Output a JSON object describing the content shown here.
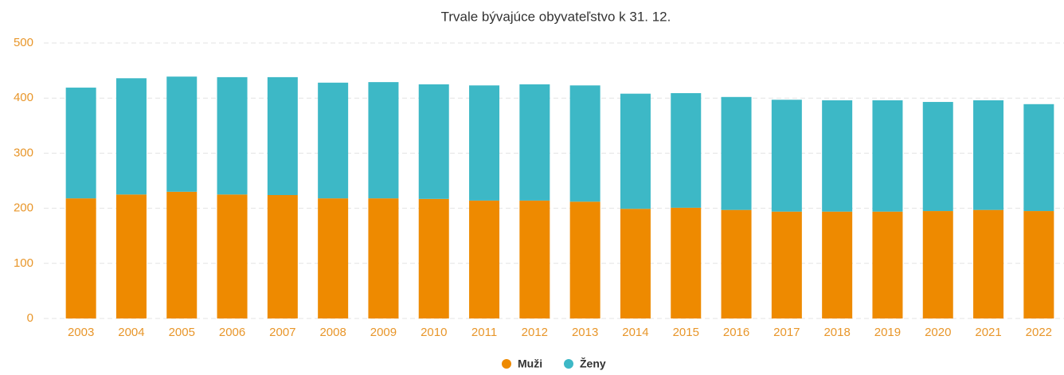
{
  "chart_data": {
    "type": "stacked_bar",
    "title": "Trvale bývajúce obyvateľstvo k 31. 12.",
    "categories": [
      "2003",
      "2004",
      "2005",
      "2006",
      "2007",
      "2008",
      "2009",
      "2010",
      "2011",
      "2012",
      "2013",
      "2014",
      "2015",
      "2016",
      "2017",
      "2018",
      "2019",
      "2020",
      "2021",
      "2022"
    ],
    "series": [
      {
        "name": "Muži",
        "color": "#ee8a00",
        "values": [
          218,
          225,
          230,
          225,
          224,
          218,
          218,
          217,
          214,
          214,
          212,
          199,
          201,
          197,
          194,
          194,
          194,
          195,
          197,
          195
        ]
      },
      {
        "name": "Ženy",
        "color": "#3db8c6",
        "values": [
          201,
          211,
          209,
          213,
          214,
          210,
          211,
          208,
          209,
          211,
          211,
          209,
          208,
          205,
          203,
          202,
          202,
          198,
          199,
          194
        ]
      }
    ],
    "ylim": [
      0,
      500
    ],
    "yticks": [
      0,
      100,
      200,
      300,
      400,
      500
    ],
    "grid": true,
    "legend": "bottom"
  }
}
